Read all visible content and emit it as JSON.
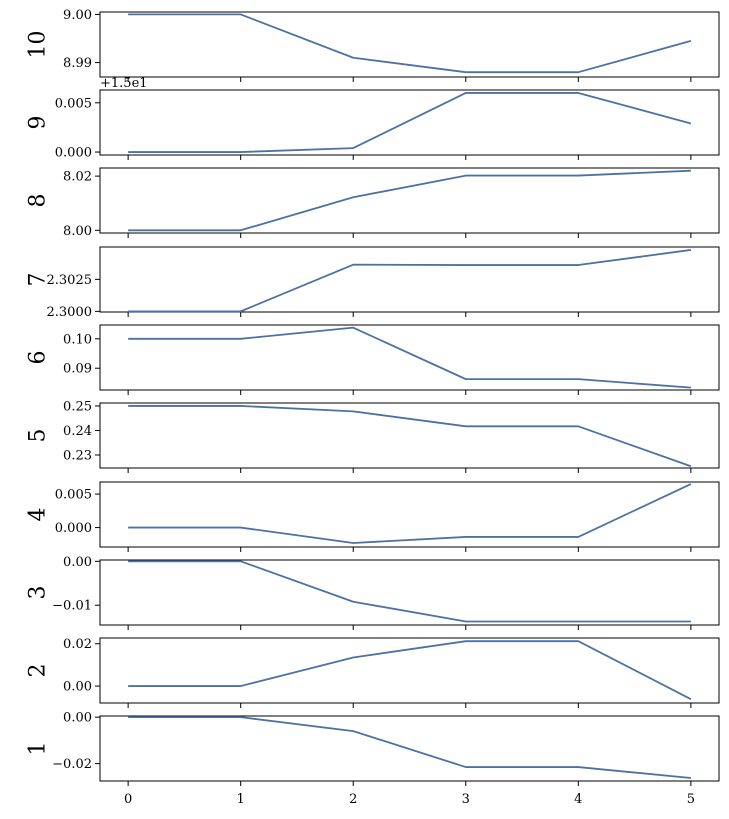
{
  "chart_data": [
    {
      "type": "line",
      "ylabel": "10",
      "x": [
        0,
        1,
        2,
        3,
        4,
        5
      ],
      "values": [
        9.0,
        9.0,
        8.991,
        8.988,
        8.988,
        8.9945
      ],
      "ylim": [
        8.987,
        9.0005
      ],
      "yticks": [
        8.99,
        9.0
      ],
      "ytick_labels": [
        "8.99",
        "9.00"
      ],
      "offset_label": "",
      "show_xtick_labels": false
    },
    {
      "type": "line",
      "ylabel": "9",
      "x": [
        0,
        1,
        2,
        3,
        4,
        5
      ],
      "values": [
        0.0,
        0.0,
        0.0004,
        0.006,
        0.006,
        0.0029
      ],
      "ylim": [
        -0.0003,
        0.0063
      ],
      "yticks": [
        0.0,
        0.005
      ],
      "ytick_labels": [
        "0.000",
        "0.005"
      ],
      "offset_label": "+1.5e1",
      "show_xtick_labels": false
    },
    {
      "type": "line",
      "ylabel": "8",
      "x": [
        0,
        1,
        2,
        3,
        4,
        5
      ],
      "values": [
        8.0,
        8.0,
        8.0122,
        8.0202,
        8.0202,
        8.022
      ],
      "ylim": [
        7.999,
        8.023
      ],
      "yticks": [
        8.0,
        8.02
      ],
      "ytick_labels": [
        "8.00",
        "8.02"
      ],
      "offset_label": "",
      "show_xtick_labels": false
    },
    {
      "type": "line",
      "ylabel": "7",
      "x": [
        0,
        1,
        2,
        3,
        4,
        5
      ],
      "values": [
        2.3,
        2.3,
        2.30365,
        2.30362,
        2.30362,
        2.3048
      ],
      "ylim": [
        2.29995,
        2.30503
      ],
      "yticks": [
        2.3,
        2.3025
      ],
      "ytick_labels": [
        "2.3000",
        "2.3025"
      ],
      "offset_label": "",
      "show_xtick_labels": false
    },
    {
      "type": "line",
      "ylabel": "6",
      "x": [
        0,
        1,
        2,
        3,
        4,
        5
      ],
      "values": [
        0.1,
        0.1,
        0.1038,
        0.0863,
        0.0863,
        0.0834
      ],
      "ylim": [
        0.0826,
        0.1047
      ],
      "yticks": [
        0.09,
        0.1
      ],
      "ytick_labels": [
        "0.09",
        "0.10"
      ],
      "offset_label": "",
      "show_xtick_labels": false
    },
    {
      "type": "line",
      "ylabel": "5",
      "x": [
        0,
        1,
        2,
        3,
        4,
        5
      ],
      "values": [
        0.25,
        0.25,
        0.2478,
        0.2417,
        0.2417,
        0.2254
      ],
      "ylim": [
        0.2247,
        0.2512
      ],
      "yticks": [
        0.23,
        0.24,
        0.25
      ],
      "ytick_labels": [
        "0.23",
        "0.24",
        "0.25"
      ],
      "offset_label": "",
      "show_xtick_labels": false
    },
    {
      "type": "line",
      "ylabel": "4",
      "x": [
        0,
        1,
        2,
        3,
        4,
        5
      ],
      "values": [
        0.0,
        0.0,
        -0.0023,
        -0.0014,
        -0.0014,
        0.0065
      ],
      "ylim": [
        -0.0029,
        0.0068
      ],
      "yticks": [
        0.0,
        0.005
      ],
      "ytick_labels": [
        "0.000",
        "0.005"
      ],
      "offset_label": "",
      "show_xtick_labels": false
    },
    {
      "type": "line",
      "ylabel": "3",
      "x": [
        0,
        1,
        2,
        3,
        4,
        5
      ],
      "values": [
        0.0,
        0.0,
        -0.0092,
        -0.0137,
        -0.0137,
        -0.0137
      ],
      "ylim": [
        -0.0145,
        0.0003
      ],
      "yticks": [
        -0.01,
        0.0
      ],
      "ytick_labels": [
        "−0.01",
        "0.00"
      ],
      "offset_label": "",
      "show_xtick_labels": false
    },
    {
      "type": "line",
      "ylabel": "2",
      "x": [
        0,
        1,
        2,
        3,
        4,
        5
      ],
      "values": [
        0.0,
        0.0,
        0.0135,
        0.0212,
        0.0212,
        -0.0062
      ],
      "ylim": [
        -0.008,
        0.0227
      ],
      "yticks": [
        0.0,
        0.02
      ],
      "ytick_labels": [
        "0.00",
        "0.02"
      ],
      "offset_label": "",
      "show_xtick_labels": false
    },
    {
      "type": "line",
      "ylabel": "1",
      "x": [
        0,
        1,
        2,
        3,
        4,
        5
      ],
      "values": [
        0.0,
        0.0,
        -0.006,
        -0.0215,
        -0.0215,
        -0.0262
      ],
      "ylim": [
        -0.0275,
        0.0005
      ],
      "yticks": [
        -0.02,
        0.0
      ],
      "ytick_labels": [
        "−0.02",
        "0.00"
      ],
      "offset_label": "",
      "show_xtick_labels": true
    }
  ],
  "xaxis": {
    "ticks": [
      0,
      1,
      2,
      3,
      4,
      5
    ],
    "tick_labels": [
      "0",
      "1",
      "2",
      "3",
      "4",
      "5"
    ],
    "xlim": [
      -0.25,
      5.25
    ]
  },
  "style": {
    "line_color": "#4c72a4"
  }
}
